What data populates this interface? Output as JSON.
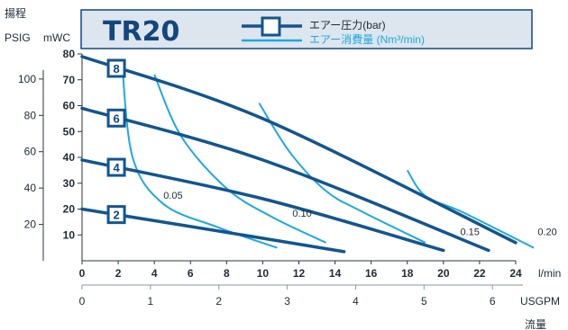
{
  "chart_data": {
    "type": "line",
    "title": "TR20",
    "x_axis": {
      "unit": "l/min",
      "ticks": [
        "0",
        "2",
        "4",
        "6",
        "8",
        "10",
        "12",
        "14",
        "16",
        "18",
        "20",
        "22",
        "24"
      ],
      "xlim": [
        0,
        24
      ]
    },
    "x2_axis": {
      "unit": "USGPM",
      "ticks": [
        "0",
        "1",
        "2",
        "3",
        "4",
        "5",
        "6"
      ],
      "xlim": [
        0,
        6.34
      ]
    },
    "x_caption": "流量",
    "y_axis_left_header": "揚程",
    "y_axis_psig": {
      "unit": "PSIG",
      "ticks": [
        "20",
        "40",
        "60",
        "80",
        "100"
      ]
    },
    "y_axis_mwc": {
      "unit": "mWC",
      "ticks": [
        "10",
        "20",
        "30",
        "40",
        "50",
        "60",
        "70",
        "80"
      ],
      "ylim": [
        0,
        80
      ]
    },
    "legend": {
      "pressure": "エアー圧力(bar)",
      "consumption": "エアー消費量 (Nm³/min)"
    },
    "colors": {
      "pressure": "#12558f",
      "consumption": "#1ea8df",
      "frame": "#12467e",
      "title_bg": "#dde5ee"
    },
    "pressure_series": [
      {
        "name": "2",
        "points": [
          [
            0,
            20
          ],
          [
            8,
            11
          ],
          [
            14.5,
            3.5
          ]
        ]
      },
      {
        "name": "4",
        "points": [
          [
            0,
            39
          ],
          [
            10,
            24
          ],
          [
            20,
            4
          ]
        ]
      },
      {
        "name": "6",
        "points": [
          [
            0,
            59
          ],
          [
            10,
            39
          ],
          [
            22.5,
            4
          ]
        ]
      },
      {
        "name": "8",
        "points": [
          [
            0,
            79
          ],
          [
            10,
            55
          ],
          [
            24,
            7
          ]
        ]
      }
    ],
    "flow_series": [
      {
        "name": "0.05",
        "points": [
          [
            2.2,
            78
          ],
          [
            2.8,
            40
          ],
          [
            4.5,
            22
          ],
          [
            7.5,
            13
          ],
          [
            10.8,
            5
          ]
        ]
      },
      {
        "name": "0.10",
        "points": [
          [
            4,
            72
          ],
          [
            5.5,
            48
          ],
          [
            8,
            28
          ],
          [
            10.5,
            17
          ],
          [
            13.5,
            7
          ]
        ]
      },
      {
        "name": "0.15",
        "points": [
          [
            9.8,
            61
          ],
          [
            11.5,
            42
          ],
          [
            13.5,
            27
          ],
          [
            15.5,
            19
          ],
          [
            19,
            7
          ]
        ]
      },
      {
        "name": "0.20",
        "points": [
          [
            18,
            35
          ],
          [
            19,
            25
          ],
          [
            21,
            19
          ],
          [
            25,
            5
          ]
        ]
      }
    ],
    "flow_labels": [
      "0.05",
      "0.10",
      "0.15",
      "0.20"
    ]
  }
}
